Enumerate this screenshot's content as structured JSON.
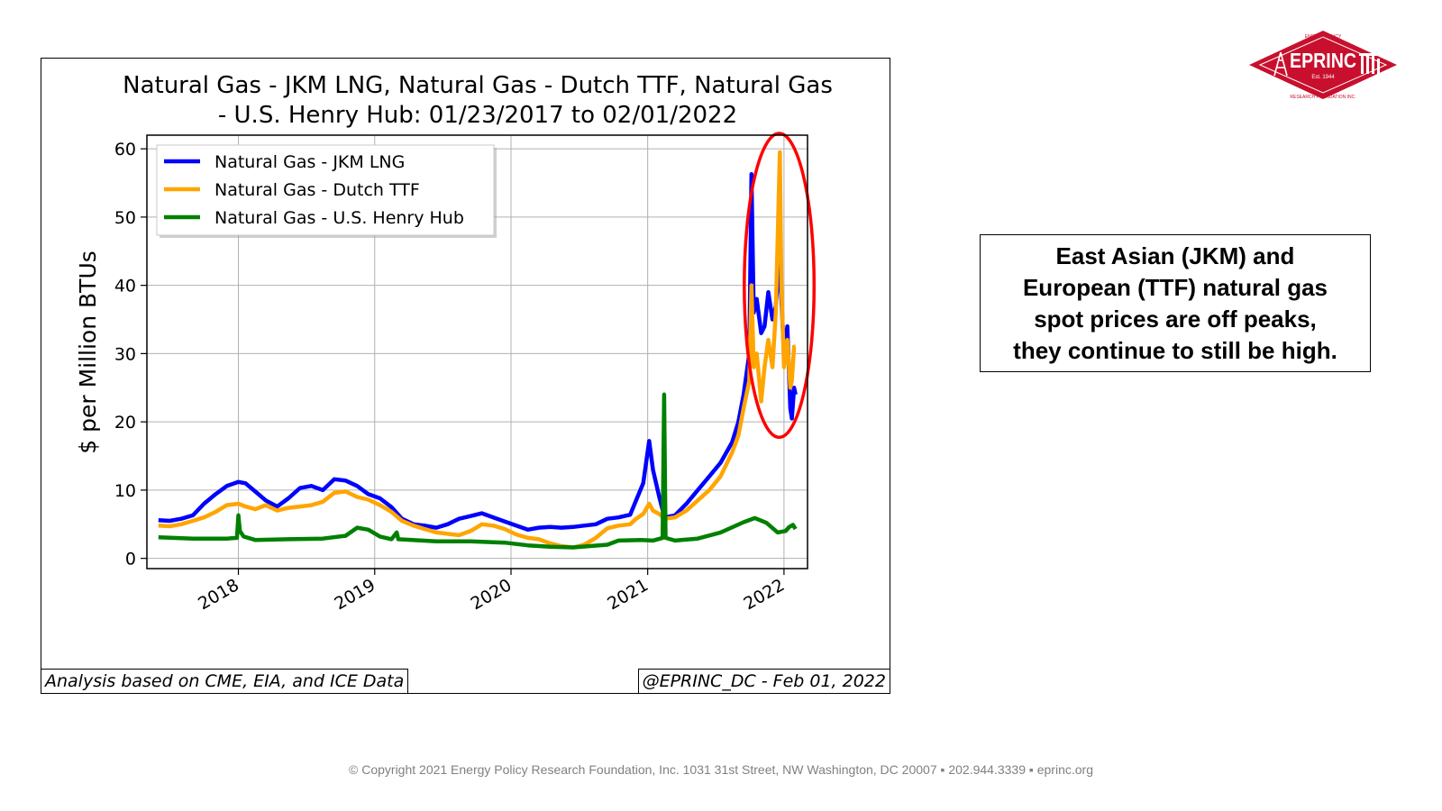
{
  "chart_data": {
    "type": "line",
    "title_line1": "Natural Gas - JKM LNG, Natural Gas - Dutch TTF, Natural Gas",
    "title_line2": "- U.S. Henry Hub: 01/23/2017 to 02/01/2022",
    "xlabel": "",
    "ylabel": "$ per Million BTUs",
    "ylim": [
      -1.5,
      62
    ],
    "xlim": [
      "2017-05-01",
      "2022-03-05"
    ],
    "yticks": [
      0,
      10,
      20,
      30,
      40,
      50,
      60
    ],
    "xticks": [
      {
        "date": "2018-01-01",
        "label": "2018"
      },
      {
        "date": "2019-01-01",
        "label": "2019"
      },
      {
        "date": "2020-01-01",
        "label": "2020"
      },
      {
        "date": "2021-01-01",
        "label": "2021"
      },
      {
        "date": "2022-01-01",
        "label": "2022"
      }
    ],
    "grid": true,
    "legend_position": "top-left",
    "highlight": "red ellipse around late-2021 JKM and TTF price spikes",
    "series": [
      {
        "name": "Natural Gas - JKM LNG",
        "color": "#0000ff",
        "points": [
          [
            "2017-06-01",
            5.6
          ],
          [
            "2017-07-01",
            5.5
          ],
          [
            "2017-08-01",
            5.8
          ],
          [
            "2017-09-01",
            6.3
          ],
          [
            "2017-10-01",
            8.0
          ],
          [
            "2017-11-01",
            9.4
          ],
          [
            "2017-12-01",
            10.6
          ],
          [
            "2018-01-01",
            11.2
          ],
          [
            "2018-01-20",
            11.0
          ],
          [
            "2018-02-15",
            9.8
          ],
          [
            "2018-03-15",
            8.5
          ],
          [
            "2018-04-15",
            7.6
          ],
          [
            "2018-05-15",
            8.8
          ],
          [
            "2018-06-15",
            10.3
          ],
          [
            "2018-07-15",
            10.6
          ],
          [
            "2018-08-15",
            10.0
          ],
          [
            "2018-09-15",
            11.6
          ],
          [
            "2018-10-15",
            11.4
          ],
          [
            "2018-11-15",
            10.6
          ],
          [
            "2018-12-15",
            9.4
          ],
          [
            "2019-01-15",
            8.8
          ],
          [
            "2019-02-15",
            7.5
          ],
          [
            "2019-03-15",
            5.8
          ],
          [
            "2019-04-15",
            5.0
          ],
          [
            "2019-05-15",
            4.8
          ],
          [
            "2019-06-15",
            4.5
          ],
          [
            "2019-07-15",
            5.0
          ],
          [
            "2019-08-15",
            5.8
          ],
          [
            "2019-09-15",
            6.2
          ],
          [
            "2019-10-15",
            6.6
          ],
          [
            "2019-11-15",
            6.0
          ],
          [
            "2019-12-15",
            5.4
          ],
          [
            "2020-01-15",
            4.8
          ],
          [
            "2020-02-15",
            4.2
          ],
          [
            "2020-03-15",
            4.5
          ],
          [
            "2020-04-15",
            4.6
          ],
          [
            "2020-05-15",
            4.5
          ],
          [
            "2020-06-15",
            4.6
          ],
          [
            "2020-07-15",
            4.8
          ],
          [
            "2020-08-15",
            5.0
          ],
          [
            "2020-09-15",
            5.8
          ],
          [
            "2020-10-15",
            6.0
          ],
          [
            "2020-11-15",
            6.4
          ],
          [
            "2020-12-01",
            8.5
          ],
          [
            "2020-12-20",
            11.0
          ],
          [
            "2021-01-05",
            17.2
          ],
          [
            "2021-01-15",
            13.0
          ],
          [
            "2021-02-01",
            9.0
          ],
          [
            "2021-02-15",
            6.0
          ],
          [
            "2021-03-15",
            6.3
          ],
          [
            "2021-04-15",
            8.0
          ],
          [
            "2021-05-15",
            10.0
          ],
          [
            "2021-06-15",
            12.0
          ],
          [
            "2021-07-15",
            14.0
          ],
          [
            "2021-08-15",
            17.0
          ],
          [
            "2021-09-01",
            20.0
          ],
          [
            "2021-09-15",
            24.0
          ],
          [
            "2021-09-30",
            30.0
          ],
          [
            "2021-10-06",
            56.3
          ],
          [
            "2021-10-12",
            36.0
          ],
          [
            "2021-10-20",
            38.0
          ],
          [
            "2021-11-01",
            33.0
          ],
          [
            "2021-11-10",
            34.0
          ],
          [
            "2021-11-20",
            39.0
          ],
          [
            "2021-12-01",
            35.0
          ],
          [
            "2021-12-10",
            37.0
          ],
          [
            "2021-12-20",
            44.0
          ],
          [
            "2021-12-25",
            38.0
          ],
          [
            "2022-01-01",
            30.0
          ],
          [
            "2022-01-10",
            34.0
          ],
          [
            "2022-01-18",
            22.0
          ],
          [
            "2022-01-22",
            20.5
          ],
          [
            "2022-01-28",
            25.0
          ],
          [
            "2022-02-01",
            24.0
          ]
        ]
      },
      {
        "name": "Natural Gas - Dutch TTF",
        "color": "#ffa500",
        "points": [
          [
            "2017-06-01",
            4.8
          ],
          [
            "2017-07-01",
            4.7
          ],
          [
            "2017-08-01",
            5.0
          ],
          [
            "2017-09-01",
            5.5
          ],
          [
            "2017-10-01",
            6.0
          ],
          [
            "2017-11-01",
            6.8
          ],
          [
            "2017-12-01",
            7.8
          ],
          [
            "2018-01-01",
            8.0
          ],
          [
            "2018-01-20",
            7.6
          ],
          [
            "2018-02-15",
            7.2
          ],
          [
            "2018-03-15",
            7.8
          ],
          [
            "2018-04-15",
            7.0
          ],
          [
            "2018-05-15",
            7.4
          ],
          [
            "2018-06-15",
            7.6
          ],
          [
            "2018-07-15",
            7.8
          ],
          [
            "2018-08-15",
            8.3
          ],
          [
            "2018-09-15",
            9.6
          ],
          [
            "2018-10-15",
            9.8
          ],
          [
            "2018-11-15",
            9.0
          ],
          [
            "2018-12-15",
            8.6
          ],
          [
            "2019-01-15",
            7.8
          ],
          [
            "2019-02-15",
            6.8
          ],
          [
            "2019-03-15",
            5.5
          ],
          [
            "2019-04-15",
            4.8
          ],
          [
            "2019-05-15",
            4.3
          ],
          [
            "2019-06-15",
            3.8
          ],
          [
            "2019-07-15",
            3.6
          ],
          [
            "2019-08-15",
            3.4
          ],
          [
            "2019-09-15",
            4.0
          ],
          [
            "2019-10-15",
            5.0
          ],
          [
            "2019-11-15",
            4.8
          ],
          [
            "2019-12-15",
            4.3
          ],
          [
            "2020-01-15",
            3.5
          ],
          [
            "2020-02-15",
            3.0
          ],
          [
            "2020-03-15",
            2.8
          ],
          [
            "2020-04-15",
            2.2
          ],
          [
            "2020-05-15",
            1.8
          ],
          [
            "2020-06-15",
            1.6
          ],
          [
            "2020-07-15",
            2.0
          ],
          [
            "2020-08-15",
            3.0
          ],
          [
            "2020-09-15",
            4.4
          ],
          [
            "2020-10-15",
            4.8
          ],
          [
            "2020-11-15",
            5.0
          ],
          [
            "2020-12-01",
            5.8
          ],
          [
            "2020-12-20",
            6.5
          ],
          [
            "2021-01-05",
            8.0
          ],
          [
            "2021-01-15",
            7.0
          ],
          [
            "2021-02-01",
            6.5
          ],
          [
            "2021-02-15",
            5.8
          ],
          [
            "2021-03-15",
            6.0
          ],
          [
            "2021-04-15",
            7.0
          ],
          [
            "2021-05-15",
            8.5
          ],
          [
            "2021-06-15",
            10.0
          ],
          [
            "2021-07-15",
            12.0
          ],
          [
            "2021-08-15",
            15.5
          ],
          [
            "2021-09-01",
            18.0
          ],
          [
            "2021-09-15",
            22.0
          ],
          [
            "2021-09-30",
            26.0
          ],
          [
            "2021-10-06",
            40.0
          ],
          [
            "2021-10-12",
            28.0
          ],
          [
            "2021-10-20",
            30.0
          ],
          [
            "2021-11-01",
            23.0
          ],
          [
            "2021-11-10",
            28.0
          ],
          [
            "2021-11-20",
            32.0
          ],
          [
            "2021-12-01",
            28.0
          ],
          [
            "2021-12-10",
            36.0
          ],
          [
            "2021-12-21",
            59.5
          ],
          [
            "2021-12-25",
            40.0
          ],
          [
            "2022-01-01",
            28.0
          ],
          [
            "2022-01-10",
            32.0
          ],
          [
            "2022-01-18",
            25.0
          ],
          [
            "2022-01-22",
            26.0
          ],
          [
            "2022-01-28",
            31.0
          ],
          [
            "2022-02-01",
            31.0
          ]
        ]
      },
      {
        "name": "Natural Gas - U.S. Henry Hub",
        "color": "#008000",
        "points": [
          [
            "2017-06-01",
            3.1
          ],
          [
            "2017-09-01",
            2.9
          ],
          [
            "2017-12-01",
            2.9
          ],
          [
            "2017-12-28",
            3.0
          ],
          [
            "2018-01-01",
            6.3
          ],
          [
            "2018-01-05",
            4.0
          ],
          [
            "2018-01-15",
            3.2
          ],
          [
            "2018-02-15",
            2.7
          ],
          [
            "2018-05-15",
            2.8
          ],
          [
            "2018-08-15",
            2.9
          ],
          [
            "2018-10-15",
            3.3
          ],
          [
            "2018-11-15",
            4.5
          ],
          [
            "2018-12-15",
            4.2
          ],
          [
            "2019-01-15",
            3.2
          ],
          [
            "2019-02-15",
            2.8
          ],
          [
            "2019-03-01",
            3.8
          ],
          [
            "2019-03-05",
            2.8
          ],
          [
            "2019-06-15",
            2.5
          ],
          [
            "2019-09-15",
            2.5
          ],
          [
            "2019-12-15",
            2.3
          ],
          [
            "2020-02-15",
            1.9
          ],
          [
            "2020-04-15",
            1.7
          ],
          [
            "2020-06-15",
            1.6
          ],
          [
            "2020-09-15",
            2.0
          ],
          [
            "2020-10-15",
            2.6
          ],
          [
            "2020-12-15",
            2.7
          ],
          [
            "2021-01-15",
            2.6
          ],
          [
            "2021-02-10",
            3.0
          ],
          [
            "2021-02-14",
            24.0
          ],
          [
            "2021-02-18",
            3.0
          ],
          [
            "2021-03-15",
            2.6
          ],
          [
            "2021-05-15",
            2.9
          ],
          [
            "2021-07-15",
            3.8
          ],
          [
            "2021-09-15",
            5.3
          ],
          [
            "2021-10-15",
            5.9
          ],
          [
            "2021-11-15",
            5.2
          ],
          [
            "2021-12-15",
            3.8
          ],
          [
            "2022-01-05",
            4.0
          ],
          [
            "2022-01-15",
            4.6
          ],
          [
            "2022-01-25",
            4.9
          ],
          [
            "2022-02-01",
            4.3
          ]
        ]
      }
    ]
  },
  "source_note": "Analysis based on CME, EIA, and ICE Data",
  "handle_note": "@EPRINC_DC - Feb 01, 2022",
  "callout": {
    "lines": [
      "East Asian (JKM) and",
      "European (TTF) natural gas",
      "spot prices are off peaks,",
      "they continue to still be high."
    ]
  },
  "logo": {
    "name": "EPRINC",
    "established": "Est. 1944",
    "arc_top": "ENERGY POLICY",
    "arc_bottom": "RESEARCH FOUNDATION INC.",
    "color": "#c8102e"
  },
  "footer": "© Copyright 2021 Energy Policy Research Foundation, Inc. 1031 31st Street, NW Washington, DC 20007 ▪ 202.944.3339 ▪ eprinc.org"
}
